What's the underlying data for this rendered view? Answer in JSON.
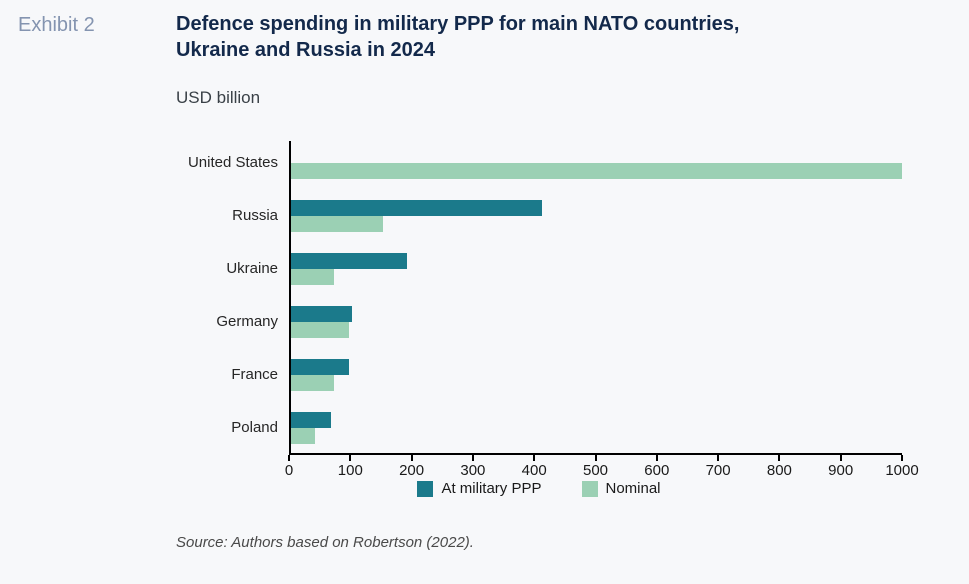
{
  "page": {
    "exhibit_label": "Exhibit 2",
    "title_line1": "Defence spending in military PPP for main NATO countries,",
    "title_line2": "Ukraine and Russia in 2024",
    "subtitle": "USD billion",
    "source": "Source: Authors based on Robertson (2022)."
  },
  "colors": {
    "page_background": "#f7f8fa",
    "title_text": "#13294b",
    "exhibit_text": "#8494b0",
    "subtitle_text": "#3a4147",
    "source_text": "#4a4a4a",
    "axis_line": "#000000",
    "accent_ppp": "#1b7a8b",
    "accent_nominal": "#9bd0b4"
  },
  "chart_data": {
    "type": "bar",
    "orientation": "horizontal",
    "title": "Defence spending in military PPP for main NATO countries, Ukraine and Russia in 2024",
    "subtitle": "USD billion",
    "categories": [
      "United States",
      "Russia",
      "Ukraine",
      "Germany",
      "France",
      "Poland"
    ],
    "series": [
      {
        "name": "At military PPP",
        "color": "#1b7a8b",
        "values": [
          null,
          410,
          190,
          100,
          95,
          65
        ]
      },
      {
        "name": "Nominal",
        "color": "#9bd0b4",
        "values": [
          1000,
          150,
          70,
          95,
          70,
          40
        ]
      }
    ],
    "xlim": [
      0,
      1000
    ],
    "xticks": [
      0,
      100,
      200,
      300,
      400,
      500,
      600,
      700,
      800,
      900,
      1000
    ],
    "grid": false,
    "legend_position": "bottom",
    "source": "Source: Authors based on Robertson (2022)."
  }
}
